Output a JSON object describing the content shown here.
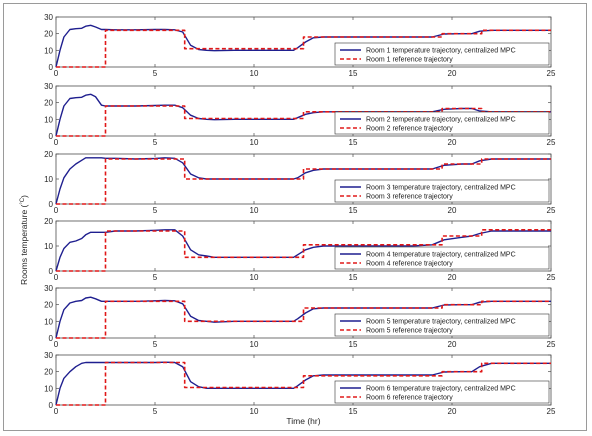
{
  "colors": {
    "actual": "#1f1f8f",
    "reference": "#e01818",
    "axes": "#4d4d4d"
  },
  "chart_data": [
    {
      "type": "line",
      "title": "",
      "xlabel": "",
      "ylabel": "",
      "xlim": [
        0,
        25
      ],
      "ylim": [
        0,
        30
      ],
      "xticks": [
        "0",
        "5",
        "10",
        "15",
        "20",
        "25"
      ],
      "yticks": [
        "0",
        "10",
        "20",
        "30"
      ],
      "legend_position": "bottom-right",
      "series": [
        {
          "name": "Room 1 temperature trajectory, centralized MPC",
          "style": "solid",
          "x": [
            0,
            0.2,
            0.4,
            0.7,
            1.0,
            1.3,
            1.5,
            1.75,
            2.0,
            2.3,
            2.5,
            3.0,
            4.0,
            5.0,
            5.5,
            6.0,
            6.4,
            6.8,
            7.2,
            7.6,
            8.0,
            9.0,
            10.0,
            11.0,
            12.0,
            12.2,
            12.6,
            13.0,
            13.5,
            14.0,
            16.0,
            18.0,
            19.0,
            19.6,
            20.5,
            21.0,
            21.4,
            22.0,
            23.0,
            25.0
          ],
          "y": [
            0,
            10,
            18,
            22.5,
            23,
            23.2,
            24.5,
            25,
            24,
            22.5,
            22.5,
            22.3,
            22.3,
            22.5,
            22.5,
            22.3,
            21,
            13,
            10.5,
            10,
            9.8,
            10,
            10,
            10,
            10,
            11.5,
            15,
            17.5,
            18,
            18,
            18,
            18,
            18,
            19.8,
            20,
            20,
            21.5,
            22,
            22,
            22
          ]
        },
        {
          "name": "Room 1 reference trajectory",
          "style": "dashed",
          "x": [
            0,
            2.5,
            2.5,
            6.5,
            6.5,
            12.5,
            12.5,
            19.5,
            19.5,
            21.5,
            21.5,
            25
          ],
          "y": [
            0,
            0,
            22,
            22,
            11,
            11,
            18,
            18,
            20,
            20,
            22,
            22
          ]
        }
      ]
    },
    {
      "type": "line",
      "title": "",
      "xlabel": "",
      "ylabel": "",
      "xlim": [
        0,
        25
      ],
      "ylim": [
        0,
        30
      ],
      "xticks": [
        "0",
        "5",
        "10",
        "15",
        "20",
        "25"
      ],
      "yticks": [
        "0",
        "10",
        "20",
        "30"
      ],
      "legend_position": "bottom-right",
      "series": [
        {
          "name": "Room 2 temperature trajectory, centralized MPC",
          "style": "solid",
          "x": [
            0,
            0.2,
            0.4,
            0.7,
            1.0,
            1.3,
            1.5,
            1.75,
            2.0,
            2.3,
            2.5,
            3.0,
            4.0,
            5.0,
            5.5,
            6.0,
            6.4,
            6.8,
            7.2,
            7.6,
            8.0,
            9.0,
            10.0,
            11.0,
            12.0,
            12.2,
            12.6,
            13.0,
            13.5,
            14.0,
            16.0,
            18.0,
            19.0,
            19.6,
            20.5,
            21.0,
            21.4,
            22.0,
            23.0,
            25.0
          ],
          "y": [
            0,
            10,
            18,
            22.5,
            23,
            23.2,
            24.5,
            25,
            23.5,
            18.5,
            18,
            18,
            18,
            18.3,
            18.5,
            18.5,
            17,
            12.5,
            10.5,
            10,
            9.8,
            10,
            10,
            10,
            10,
            11,
            13,
            14,
            14.5,
            14.5,
            14.5,
            14.5,
            14.5,
            16,
            16.5,
            16.5,
            15,
            14.5,
            14.5,
            14.5
          ]
        },
        {
          "name": "Room 2 reference trajectory",
          "style": "dashed",
          "x": [
            0,
            2.5,
            2.5,
            6.5,
            6.5,
            12.5,
            12.5,
            19.5,
            19.5,
            21.5,
            21.5,
            25
          ],
          "y": [
            0,
            0,
            18,
            18,
            10.5,
            10.5,
            14.5,
            14.5,
            16.5,
            16.5,
            14.5,
            14.5
          ]
        }
      ]
    },
    {
      "type": "line",
      "title": "",
      "xlabel": "",
      "ylabel": "",
      "xlim": [
        0,
        25
      ],
      "ylim": [
        0,
        20
      ],
      "xticks": [
        "0",
        "5",
        "10",
        "15",
        "20",
        "25"
      ],
      "yticks": [
        "0",
        "10",
        "20"
      ],
      "legend_position": "bottom-right",
      "series": [
        {
          "name": "Room 3 temperature trajectory, centralized MPC",
          "style": "solid",
          "x": [
            0,
            0.2,
            0.4,
            0.7,
            1.0,
            1.3,
            1.5,
            1.75,
            2.0,
            2.3,
            2.5,
            3.0,
            4.0,
            5.0,
            5.5,
            6.0,
            6.4,
            6.8,
            7.2,
            7.6,
            8.0,
            9.0,
            10.0,
            11.0,
            12.0,
            12.2,
            12.6,
            13.0,
            13.5,
            14.0,
            16.0,
            18.0,
            19.0,
            19.6,
            20.5,
            21.0,
            21.4,
            22.0,
            23.0,
            25.0
          ],
          "y": [
            0,
            6,
            10.5,
            14,
            16,
            17.5,
            18.5,
            18.5,
            18.5,
            18.5,
            18.3,
            18.3,
            18,
            18.2,
            18.5,
            18.3,
            16.5,
            12,
            10.5,
            10,
            10,
            10,
            10,
            10,
            10,
            10.5,
            12.5,
            13.5,
            14,
            14,
            14,
            14,
            14,
            15.5,
            16,
            16,
            17.3,
            18,
            18,
            18
          ]
        },
        {
          "name": "Room 3 reference trajectory",
          "style": "dashed",
          "x": [
            0,
            2.5,
            2.5,
            6.5,
            6.5,
            12.5,
            12.5,
            19.5,
            19.5,
            21.5,
            21.5,
            25
          ],
          "y": [
            0,
            0,
            18,
            18,
            10,
            10,
            14,
            14,
            16,
            16,
            18,
            18
          ]
        }
      ]
    },
    {
      "type": "line",
      "title": "",
      "xlabel": "",
      "ylabel": "",
      "xlim": [
        0,
        25
      ],
      "ylim": [
        0,
        20
      ],
      "xticks": [
        "0",
        "5",
        "10",
        "15",
        "20",
        "25"
      ],
      "yticks": [
        "0",
        "10",
        "20"
      ],
      "legend_position": "bottom-right",
      "series": [
        {
          "name": "Room 4 temperature trajectory, centralized MPC",
          "style": "solid",
          "x": [
            0,
            0.2,
            0.4,
            0.7,
            1.0,
            1.3,
            1.5,
            1.75,
            2.0,
            2.3,
            2.5,
            3.0,
            4.0,
            5.0,
            5.5,
            6.0,
            6.4,
            6.8,
            7.2,
            7.6,
            8.0,
            9.0,
            10.0,
            11.0,
            12.0,
            12.2,
            12.6,
            13.0,
            13.5,
            14.0,
            16.0,
            18.0,
            19.0,
            19.6,
            20.5,
            21.0,
            21.4,
            22.0,
            23.0,
            25.0
          ],
          "y": [
            0,
            5.5,
            9,
            11.5,
            12,
            13,
            14.5,
            15.5,
            15.5,
            15.5,
            15.5,
            16,
            16,
            16.3,
            16.5,
            16.5,
            14,
            8.5,
            6.5,
            6,
            5.5,
            5.5,
            5.5,
            5.5,
            5.5,
            6.5,
            8.5,
            9.5,
            10,
            10,
            10,
            10,
            10.5,
            12.5,
            13.5,
            14,
            15,
            16,
            16,
            16
          ]
        },
        {
          "name": "Room 4 reference trajectory",
          "style": "dashed",
          "x": [
            0,
            2.5,
            2.5,
            6.5,
            6.5,
            12.5,
            12.5,
            19.5,
            19.5,
            21.5,
            21.5,
            25
          ],
          "y": [
            0,
            0,
            16,
            16,
            5.5,
            5.5,
            10.5,
            10.5,
            14,
            14,
            16.5,
            16.5
          ]
        }
      ]
    },
    {
      "type": "line",
      "title": "",
      "xlabel": "",
      "ylabel": "",
      "xlim": [
        0,
        25
      ],
      "ylim": [
        0,
        30
      ],
      "xticks": [
        "0",
        "5",
        "10",
        "15",
        "20",
        "25"
      ],
      "yticks": [
        "0",
        "10",
        "20",
        "30"
      ],
      "legend_position": "bottom-right",
      "series": [
        {
          "name": "Room 5 temperature trajectory, centralized MPC",
          "style": "solid",
          "x": [
            0,
            0.2,
            0.4,
            0.7,
            1.0,
            1.3,
            1.5,
            1.75,
            2.0,
            2.3,
            2.5,
            3.0,
            4.0,
            5.0,
            5.5,
            6.0,
            6.4,
            6.8,
            7.2,
            7.6,
            8.0,
            9.0,
            10.0,
            11.0,
            12.0,
            12.2,
            12.6,
            13.0,
            13.5,
            14.0,
            16.0,
            18.0,
            19.0,
            19.6,
            20.5,
            21.0,
            21.4,
            22.0,
            23.0,
            25.0
          ],
          "y": [
            0,
            10,
            17,
            21,
            22,
            22.5,
            24,
            24.5,
            23.5,
            22,
            22,
            22,
            22,
            22.3,
            22.5,
            22.3,
            20.5,
            13,
            10.5,
            10,
            9.5,
            10,
            10,
            10,
            10,
            11.5,
            15,
            17.5,
            18,
            18,
            18,
            18,
            18,
            19.8,
            20,
            20,
            21.5,
            22,
            22,
            22
          ]
        },
        {
          "name": "Room 5 reference trajectory",
          "style": "dashed",
          "x": [
            0,
            2.5,
            2.5,
            6.5,
            6.5,
            12.5,
            12.5,
            19.5,
            19.5,
            21.5,
            21.5,
            25
          ],
          "y": [
            0,
            0,
            22,
            22,
            10,
            10,
            18,
            18,
            20,
            20,
            22,
            22
          ]
        }
      ]
    },
    {
      "type": "line",
      "title": "",
      "xlabel": "Time (hr)",
      "ylabel": "",
      "xlim": [
        0,
        25
      ],
      "ylim": [
        0,
        30
      ],
      "xticks": [
        "0",
        "5",
        "10",
        "15",
        "20",
        "25"
      ],
      "yticks": [
        "0",
        "10",
        "20",
        "30"
      ],
      "legend_position": "bottom-right",
      "series": [
        {
          "name": "Room 6 temperature trajectory, centralized MPC",
          "style": "solid",
          "x": [
            0,
            0.2,
            0.4,
            0.7,
            1.0,
            1.3,
            1.5,
            1.75,
            2.0,
            2.3,
            2.5,
            3.0,
            4.0,
            5.0,
            5.5,
            6.0,
            6.4,
            6.8,
            7.2,
            7.6,
            8.0,
            9.0,
            10.0,
            11.0,
            12.0,
            12.2,
            12.6,
            13.0,
            13.5,
            14.0,
            16.0,
            18.0,
            19.0,
            19.6,
            20.5,
            21.0,
            21.4,
            22.0,
            23.0,
            25.0
          ],
          "y": [
            0,
            10,
            16,
            20,
            23,
            25,
            25.5,
            25.5,
            25.5,
            25.5,
            25.5,
            25.5,
            25.5,
            25.5,
            25.7,
            25.5,
            23,
            14,
            11,
            10,
            10,
            10,
            10,
            10,
            10,
            11.5,
            15,
            17.5,
            18,
            18,
            18,
            18,
            18,
            19.8,
            20,
            20,
            23,
            25,
            25,
            25
          ]
        },
        {
          "name": "Room 6 reference trajectory",
          "style": "dashed",
          "x": [
            0,
            2.5,
            2.5,
            6.5,
            6.5,
            12.5,
            12.5,
            19.5,
            19.5,
            21.5,
            21.5,
            25
          ],
          "y": [
            0,
            0,
            25.5,
            25.5,
            10.5,
            10.5,
            17.5,
            17.5,
            20,
            20,
            25,
            25
          ]
        }
      ]
    }
  ],
  "shared_ylabel": "Rooms temperature (",
  "shared_ylabel_unit": "°C",
  "shared_ylabel_close": ")"
}
